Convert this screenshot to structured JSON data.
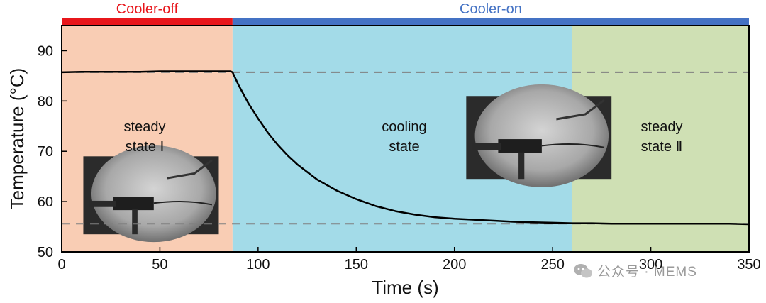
{
  "chart_data": {
    "type": "line",
    "xlabel": "Time (s)",
    "ylabel": "Temperature (°C)",
    "xlim": [
      0,
      350
    ],
    "ylim": [
      50,
      95
    ],
    "xticks": [
      0,
      50,
      100,
      150,
      200,
      250,
      300,
      350
    ],
    "yticks": [
      50,
      60,
      70,
      80,
      90
    ],
    "bands": [
      {
        "label": "Cooler-off",
        "x_range": [
          0,
          87
        ],
        "color": "#e8161b"
      },
      {
        "label": "Cooler-on",
        "x_range": [
          87,
          350
        ],
        "color": "#4472c4"
      }
    ],
    "regions": [
      {
        "lines": [
          "steady",
          "state Ⅰ"
        ],
        "x_range": [
          0,
          87
        ],
        "color": "#f9cdb4"
      },
      {
        "lines": [
          "cooling",
          "state"
        ],
        "x_range": [
          87,
          260
        ],
        "color": "#a3dbe8"
      },
      {
        "lines": [
          "steady",
          "state Ⅱ"
        ],
        "x_range": [
          260,
          350
        ],
        "color": "#cfe0b4"
      }
    ],
    "reference_lines": [
      {
        "y": 85.7,
        "style": "dashed",
        "color": "#808080"
      },
      {
        "y": 55.6,
        "style": "dashed",
        "color": "#808080"
      }
    ],
    "series": [
      {
        "x": [
          0,
          10,
          20,
          30,
          40,
          50,
          60,
          70,
          80,
          86,
          87,
          90,
          95,
          100,
          105,
          110,
          115,
          120,
          130,
          140,
          150,
          160,
          170,
          180,
          190,
          200,
          210,
          220,
          230,
          240,
          250,
          260,
          270,
          280,
          290,
          300,
          310,
          320,
          330,
          340,
          350
        ],
        "y": [
          85.7,
          85.8,
          85.8,
          85.8,
          85.8,
          85.9,
          85.9,
          85.9,
          85.9,
          85.9,
          85.7,
          83.2,
          79.6,
          76.5,
          73.7,
          71.3,
          69.2,
          67.4,
          64.4,
          62.2,
          60.5,
          59.1,
          58.1,
          57.4,
          56.9,
          56.6,
          56.4,
          56.2,
          56.0,
          55.9,
          55.8,
          55.7,
          55.7,
          55.6,
          55.6,
          55.6,
          55.6,
          55.6,
          55.6,
          55.6,
          55.5
        ],
        "color": "#000000"
      }
    ]
  },
  "insets": [
    {
      "name": "photo-steady-state-1",
      "x_range": [
        11,
        80
      ],
      "y_range": [
        53.5,
        69
      ]
    },
    {
      "name": "photo-cooling-state",
      "x_range": [
        206,
        280
      ],
      "y_range": [
        64.5,
        81
      ]
    }
  ],
  "watermark": {
    "text": "公众号 · MEMS"
  }
}
